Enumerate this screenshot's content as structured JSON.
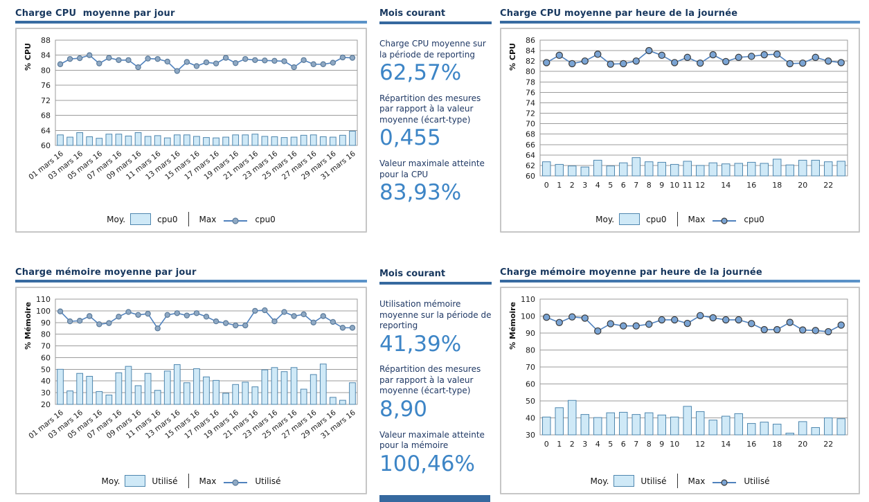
{
  "colors": {
    "heading": "#17375e",
    "rule": "#36699f",
    "body_text": "#1f3864",
    "value_blue": "#3d85c6",
    "bar_fill": "#cfe9f7",
    "bar_stroke": "#4e86ae",
    "line": "#4f81bd",
    "grid": "#9b9b9b",
    "box_border": "#c6c6c6",
    "tick": "#1a1a1a"
  },
  "panels": {
    "cpu": {
      "header": "Mois courant",
      "stats": [
        {
          "label": "Charge CPU moyenne sur la période de reporting",
          "value": "62,57%"
        },
        {
          "label": "Répartition des mesures par rapport à la valeur moyenne (écart-type)",
          "value": "0,455"
        },
        {
          "label": "Valeur maximale atteinte pour la CPU",
          "value": "83,93%"
        }
      ]
    },
    "mem": {
      "header": "Mois courant",
      "stats": [
        {
          "label": "Utilisation mémoire moyenne sur la période de reporting",
          "value": "41,39%"
        },
        {
          "label": "Répartition des mesures par rapport à la valeur moyenne (écart-type)",
          "value": "8,90"
        },
        {
          "label": "Valeur maximale atteinte pour la mémoire",
          "value": "100,46%"
        }
      ]
    }
  },
  "chart_data": [
    {
      "id": "cpu-daily",
      "type": "combo",
      "title": "Charge CPU  moyenne par jour",
      "ylabel": "% CPU",
      "ylim": [
        60,
        88
      ],
      "ystep": 4,
      "n_points": 31,
      "rotate_xticks": true,
      "marker_fill": "#8fa9c4",
      "marker_stroke": "#5a7a9a",
      "marker_r": 3.6,
      "xticks": [
        {
          "i": 0,
          "label": "01 mars 16"
        },
        {
          "i": 2,
          "label": "03 mars 16"
        },
        {
          "i": 4,
          "label": "05 mars 16"
        },
        {
          "i": 6,
          "label": "07 mars 16"
        },
        {
          "i": 8,
          "label": "09 mars 16"
        },
        {
          "i": 10,
          "label": "11 mars 16"
        },
        {
          "i": 12,
          "label": "13 mars 16"
        },
        {
          "i": 14,
          "label": "15 mars 16"
        },
        {
          "i": 16,
          "label": "17 mars 16"
        },
        {
          "i": 18,
          "label": "19 mars 16"
        },
        {
          "i": 20,
          "label": "21 mars 16"
        },
        {
          "i": 22,
          "label": "23 mars 16"
        },
        {
          "i": 24,
          "label": "25 mars 16"
        },
        {
          "i": 26,
          "label": "27 mars 16"
        },
        {
          "i": 28,
          "label": "29 mars 16"
        },
        {
          "i": 30,
          "label": "31 mars 16"
        }
      ],
      "series": [
        {
          "role": "Moy.",
          "name": "cpu0",
          "type": "bar",
          "values": [
            62.8,
            62.2,
            63.4,
            62.3,
            61.9,
            63.0,
            63.0,
            62.5,
            63.4,
            62.4,
            62.6,
            62.0,
            62.8,
            62.8,
            62.4,
            62.1,
            62.0,
            62.2,
            62.8,
            62.8,
            63.0,
            62.4,
            62.3,
            62.1,
            62.2,
            62.7,
            62.8,
            62.3,
            62.2,
            62.7,
            63.8
          ]
        },
        {
          "role": "Max",
          "name": "cpu0",
          "type": "line",
          "values": [
            81.6,
            83.0,
            83.2,
            84.0,
            81.8,
            83.3,
            82.7,
            82.7,
            80.8,
            83.1,
            83.0,
            82.3,
            79.8,
            82.2,
            81.1,
            82.1,
            81.8,
            83.3,
            81.9,
            83.0,
            82.7,
            82.6,
            82.5,
            82.4,
            80.8,
            82.7,
            81.6,
            81.6,
            82.0,
            83.4,
            83.3
          ]
        }
      ],
      "legend": {
        "moy_label": "Moy.",
        "moy_series": "cpu0",
        "max_label": "Max",
        "max_series": "cpu0"
      }
    },
    {
      "id": "cpu-hourly",
      "type": "combo",
      "title": "Charge CPU moyenne par heure de la journée",
      "ylabel": "% CPU",
      "ylim": [
        60,
        86
      ],
      "ystep": 2,
      "n_points": 24,
      "rotate_xticks": false,
      "marker_fill": "#7aa4d4",
      "marker_stroke": "#3a3a3a",
      "marker_r": 4.6,
      "xticks": [
        {
          "i": 0,
          "label": "0"
        },
        {
          "i": 1,
          "label": "1"
        },
        {
          "i": 2,
          "label": "2"
        },
        {
          "i": 3,
          "label": "3"
        },
        {
          "i": 4,
          "label": "4"
        },
        {
          "i": 5,
          "label": "5"
        },
        {
          "i": 6,
          "label": "6"
        },
        {
          "i": 7,
          "label": "7"
        },
        {
          "i": 8,
          "label": "8"
        },
        {
          "i": 9,
          "label": "9"
        },
        {
          "i": 10,
          "label": "10"
        },
        {
          "i": 11,
          "label": "11"
        },
        {
          "i": 12,
          "label": "12"
        },
        {
          "i": 14,
          "label": "14"
        },
        {
          "i": 16,
          "label": "16"
        },
        {
          "i": 18,
          "label": "18"
        },
        {
          "i": 20,
          "label": "20"
        },
        {
          "i": 22,
          "label": "22"
        }
      ],
      "series": [
        {
          "role": "Moy.",
          "name": "cpu0",
          "type": "bar",
          "values": [
            62.7,
            62.2,
            61.9,
            61.7,
            63.0,
            61.9,
            62.5,
            63.5,
            62.7,
            62.6,
            62.2,
            62.8,
            62.0,
            62.5,
            62.3,
            62.4,
            62.6,
            62.4,
            63.2,
            62.1,
            63.0,
            63.0,
            62.7,
            62.8
          ]
        },
        {
          "role": "Max",
          "name": "cpu0",
          "type": "line",
          "values": [
            81.7,
            83.1,
            81.5,
            82.0,
            83.3,
            81.4,
            81.5,
            82.0,
            84.0,
            83.1,
            81.7,
            82.7,
            81.6,
            83.2,
            81.9,
            82.7,
            82.9,
            83.2,
            83.3,
            81.5,
            81.6,
            82.7,
            82.0,
            81.7
          ]
        }
      ],
      "legend": {
        "moy_label": "Moy.",
        "moy_series": "cpu0",
        "max_label": "Max",
        "max_series": "cpu0"
      }
    },
    {
      "id": "mem-daily",
      "type": "combo",
      "title": "Charge mémoire moyenne par jour",
      "ylabel": "% Mémoire",
      "ylim": [
        20,
        110
      ],
      "ystep": 10,
      "n_points": 31,
      "rotate_xticks": true,
      "marker_fill": "#8fa9c4",
      "marker_stroke": "#5a7a9a",
      "marker_r": 3.6,
      "xticks": [
        {
          "i": 0,
          "label": "01 mars 16"
        },
        {
          "i": 2,
          "label": "03 mars 16"
        },
        {
          "i": 4,
          "label": "05 mars 16"
        },
        {
          "i": 6,
          "label": "07 mars 16"
        },
        {
          "i": 8,
          "label": "09 mars 16"
        },
        {
          "i": 10,
          "label": "11 mars 16"
        },
        {
          "i": 12,
          "label": "13 mars 16"
        },
        {
          "i": 14,
          "label": "15 mars 16"
        },
        {
          "i": 16,
          "label": "17 mars 16"
        },
        {
          "i": 18,
          "label": "19 mars 16"
        },
        {
          "i": 20,
          "label": "21 mars 16"
        },
        {
          "i": 22,
          "label": "23 mars 16"
        },
        {
          "i": 24,
          "label": "25 mars 16"
        },
        {
          "i": 26,
          "label": "27 mars 16"
        },
        {
          "i": 28,
          "label": "29 mars 16"
        },
        {
          "i": 30,
          "label": "31 mars 16"
        }
      ],
      "series": [
        {
          "role": "Moy.",
          "name": "Utilisé",
          "type": "bar",
          "values": [
            50.0,
            31.5,
            46.5,
            44.0,
            31.0,
            28.0,
            47.0,
            52.5,
            36.0,
            46.5,
            32.0,
            48.5,
            54.0,
            38.5,
            50.5,
            43.5,
            40.5,
            29.5,
            37.0,
            39.0,
            35.0,
            49.5,
            51.5,
            48.0,
            51.5,
            33.0,
            45.5,
            54.5,
            26.0,
            23.5,
            38.5
          ]
        },
        {
          "role": "Max",
          "name": "Utilisé",
          "type": "line",
          "values": [
            99.5,
            91.0,
            91.5,
            95.5,
            88.5,
            89.5,
            95.0,
            99.0,
            96.5,
            97.5,
            85.0,
            96.5,
            98.0,
            96.0,
            98.0,
            95.0,
            91.0,
            89.5,
            87.5,
            87.5,
            100.0,
            100.5,
            91.0,
            99.0,
            95.5,
            97.0,
            90.0,
            95.5,
            90.5,
            85.5,
            85.5
          ]
        }
      ],
      "legend": {
        "moy_label": "Moy.",
        "moy_series": "Utilisé",
        "max_label": "Max",
        "max_series": "Utilisé"
      }
    },
    {
      "id": "mem-hourly",
      "type": "combo",
      "title": "Charge mémoire moyenne par heure de la journée",
      "ylabel": "% Mémoire",
      "ylim": [
        30,
        110
      ],
      "ystep": 10,
      "n_points": 24,
      "rotate_xticks": false,
      "marker_fill": "#7aa4d4",
      "marker_stroke": "#3a3a3a",
      "marker_r": 4.6,
      "xticks": [
        {
          "i": 0,
          "label": "0"
        },
        {
          "i": 1,
          "label": "1"
        },
        {
          "i": 2,
          "label": "2"
        },
        {
          "i": 3,
          "label": "3"
        },
        {
          "i": 4,
          "label": "4"
        },
        {
          "i": 5,
          "label": "5"
        },
        {
          "i": 6,
          "label": "6"
        },
        {
          "i": 7,
          "label": "7"
        },
        {
          "i": 8,
          "label": "8"
        },
        {
          "i": 9,
          "label": "9"
        },
        {
          "i": 10,
          "label": "10"
        },
        {
          "i": 12,
          "label": "12"
        },
        {
          "i": 14,
          "label": "14"
        },
        {
          "i": 16,
          "label": "16"
        },
        {
          "i": 18,
          "label": "18"
        },
        {
          "i": 20,
          "label": "20"
        },
        {
          "i": 22,
          "label": "22"
        }
      ],
      "series": [
        {
          "role": "Moy.",
          "name": "Utilisé",
          "type": "bar",
          "values": [
            40.5,
            46.0,
            50.3,
            42.0,
            40.2,
            43.0,
            43.3,
            42.0,
            43.0,
            41.7,
            40.5,
            46.8,
            43.7,
            38.7,
            41.0,
            42.5,
            36.7,
            37.5,
            36.3,
            31.0,
            37.8,
            34.3,
            40.0,
            39.5
          ]
        },
        {
          "role": "Max",
          "name": "Utilisé",
          "type": "line",
          "values": [
            99.3,
            96.2,
            99.5,
            98.8,
            91.2,
            95.5,
            94.2,
            94.2,
            95.2,
            97.8,
            97.8,
            95.7,
            100.3,
            99.0,
            97.8,
            97.8,
            95.6,
            92.0,
            92.0,
            96.3,
            91.8,
            91.5,
            90.8,
            94.7
          ]
        }
      ],
      "legend": {
        "moy_label": "Moy.",
        "moy_series": "Utilisé",
        "max_label": "Max",
        "max_series": "Utilisé"
      }
    }
  ]
}
